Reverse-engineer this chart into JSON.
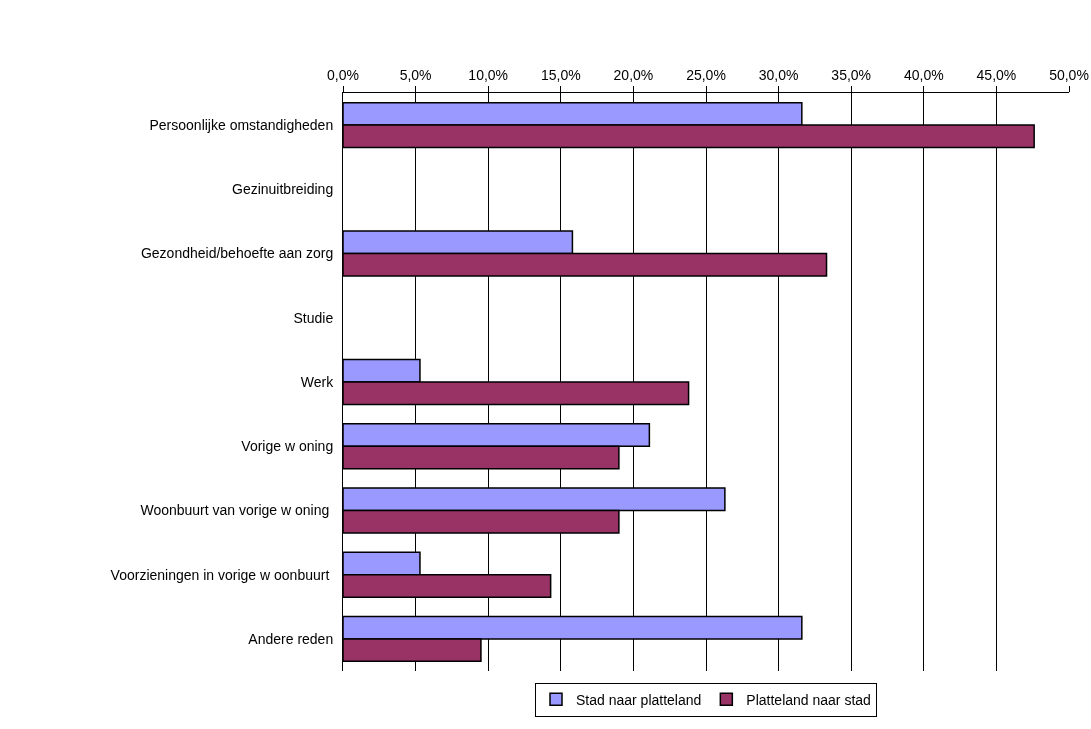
{
  "chart_data": {
    "type": "bar",
    "orientation": "horizontal",
    "categories": [
      "Persoonlijke omstandigheden",
      "Gezinuitbreiding",
      "Gezondheid/behoefte aan zorg",
      "Studie",
      "Werk",
      "Vorige w oning",
      "Woonbuurt van vorige w oning ",
      "Voorzieningen in vorige w oonbuurt ",
      "Andere reden"
    ],
    "series": [
      {
        "name": "Stad naar platteland",
        "color": "#9999ff",
        "values": [
          31.6,
          null,
          15.8,
          null,
          5.3,
          21.1,
          26.3,
          5.3,
          31.6
        ]
      },
      {
        "name": "Platteland naar stad",
        "color": "#993366",
        "values": [
          47.6,
          null,
          33.3,
          null,
          23.8,
          19.0,
          19.0,
          14.3,
          9.5
        ]
      }
    ],
    "xlim": [
      0,
      50
    ],
    "xticks": [
      {
        "value": 0,
        "label": "0,0%"
      },
      {
        "value": 5,
        "label": "5,0%"
      },
      {
        "value": 10,
        "label": "10,0%"
      },
      {
        "value": 15,
        "label": "15,0%"
      },
      {
        "value": 20,
        "label": "20,0%"
      },
      {
        "value": 25,
        "label": "25,0%"
      },
      {
        "value": 30,
        "label": "30,0%"
      },
      {
        "value": 35,
        "label": "35,0%"
      },
      {
        "value": 40,
        "label": "40,0%"
      },
      {
        "value": 45,
        "label": "45,0%"
      },
      {
        "value": 50,
        "label": "50,0%"
      }
    ],
    "grid": "x",
    "legend": "bottom"
  }
}
